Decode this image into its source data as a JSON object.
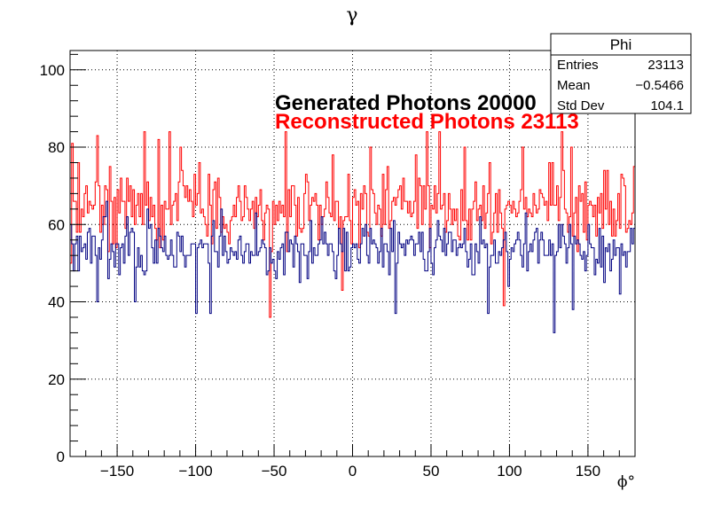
{
  "chart_data": {
    "type": "line",
    "title": "γ",
    "xlabel": "ϕ°",
    "ylabel": "",
    "xlim": [
      -180,
      180
    ],
    "ylim": [
      0,
      105
    ],
    "x_ticks": [
      -150,
      -100,
      -50,
      0,
      50,
      100,
      150
    ],
    "y_ticks": [
      0,
      20,
      40,
      60,
      80,
      100
    ],
    "x_tick_labels": [
      "−150",
      "−100",
      "−50",
      "0",
      "50",
      "100",
      "150"
    ],
    "y_tick_labels": [
      "0",
      "20",
      "40",
      "60",
      "80",
      "100"
    ],
    "grid": true,
    "n_bins": 360,
    "series": [
      {
        "color": "#ff0000",
        "mean": 64,
        "spread": 8,
        "seed": 7,
        "values": [],
        "anchors": [
          [
            -180,
            50
          ],
          [
            -179,
            81
          ],
          [
            -175,
            76
          ],
          [
            -163,
            83
          ],
          [
            -158,
            70
          ],
          [
            -155,
            75
          ],
          [
            -148,
            72
          ],
          [
            -139,
            60
          ],
          [
            -133,
            84
          ],
          [
            -124,
            82
          ],
          [
            -117,
            84
          ],
          [
            -110,
            80
          ],
          [
            -98,
            76
          ],
          [
            -90,
            55
          ],
          [
            -86,
            72
          ],
          [
            -73,
            70
          ],
          [
            -64,
            66
          ],
          [
            -53,
            36
          ],
          [
            -50,
            60
          ],
          [
            -43,
            84
          ],
          [
            -30,
            73
          ],
          [
            -20,
            60
          ],
          [
            -13,
            78
          ],
          [
            -7,
            43
          ],
          [
            -3,
            73
          ],
          [
            11,
            80
          ],
          [
            22,
            75
          ],
          [
            30,
            70
          ],
          [
            40,
            78
          ],
          [
            47,
            84
          ],
          [
            55,
            84
          ],
          [
            71,
            80
          ],
          [
            80,
            64
          ],
          [
            87,
            76
          ],
          [
            96,
            39
          ],
          [
            108,
            80
          ],
          [
            117,
            63
          ],
          [
            127,
            76
          ],
          [
            133,
            84
          ],
          [
            139,
            80
          ],
          [
            145,
            66
          ],
          [
            150,
            65
          ],
          [
            160,
            74
          ],
          [
            165,
            57
          ],
          [
            171,
            73
          ],
          [
            179,
            75
          ]
        ]
      },
      {
        "color": "#000080",
        "mean": 54,
        "spread": 6,
        "seed": 13,
        "values": [],
        "anchors": [
          [
            -180,
            60
          ],
          [
            -178,
            48
          ],
          [
            -163,
            40
          ],
          [
            -157,
            66
          ],
          [
            -139,
            40
          ],
          [
            -131,
            64
          ],
          [
            -122,
            54
          ],
          [
            -100,
            37
          ],
          [
            -91,
            37
          ],
          [
            -84,
            64
          ],
          [
            -68,
            55
          ],
          [
            -50,
            48
          ],
          [
            -34,
            45
          ],
          [
            -20,
            62
          ],
          [
            -8,
            55
          ],
          [
            5,
            55
          ],
          [
            20,
            55
          ],
          [
            27,
            37
          ],
          [
            40,
            55
          ],
          [
            60,
            55
          ],
          [
            70,
            55
          ],
          [
            80,
            50
          ],
          [
            86,
            37
          ],
          [
            99,
            44
          ],
          [
            110,
            63
          ],
          [
            124,
            52
          ],
          [
            128,
            32
          ],
          [
            135,
            55
          ],
          [
            140,
            38
          ],
          [
            150,
            60
          ],
          [
            160,
            45
          ],
          [
            170,
            42
          ],
          [
            178,
            55
          ]
        ]
      }
    ],
    "stats_box": {
      "title": "Phi",
      "rows": [
        {
          "label": "Entries",
          "value": "23113"
        },
        {
          "label": "Mean",
          "value": "−0.5466"
        },
        {
          "label": "Std Dev",
          "value": "104.1"
        }
      ]
    },
    "annotations": [
      {
        "text": "Generated Photons 20000",
        "color": "#000000"
      },
      {
        "text": "Reconstructed Photons 23113",
        "color": "#ff0000"
      }
    ]
  }
}
